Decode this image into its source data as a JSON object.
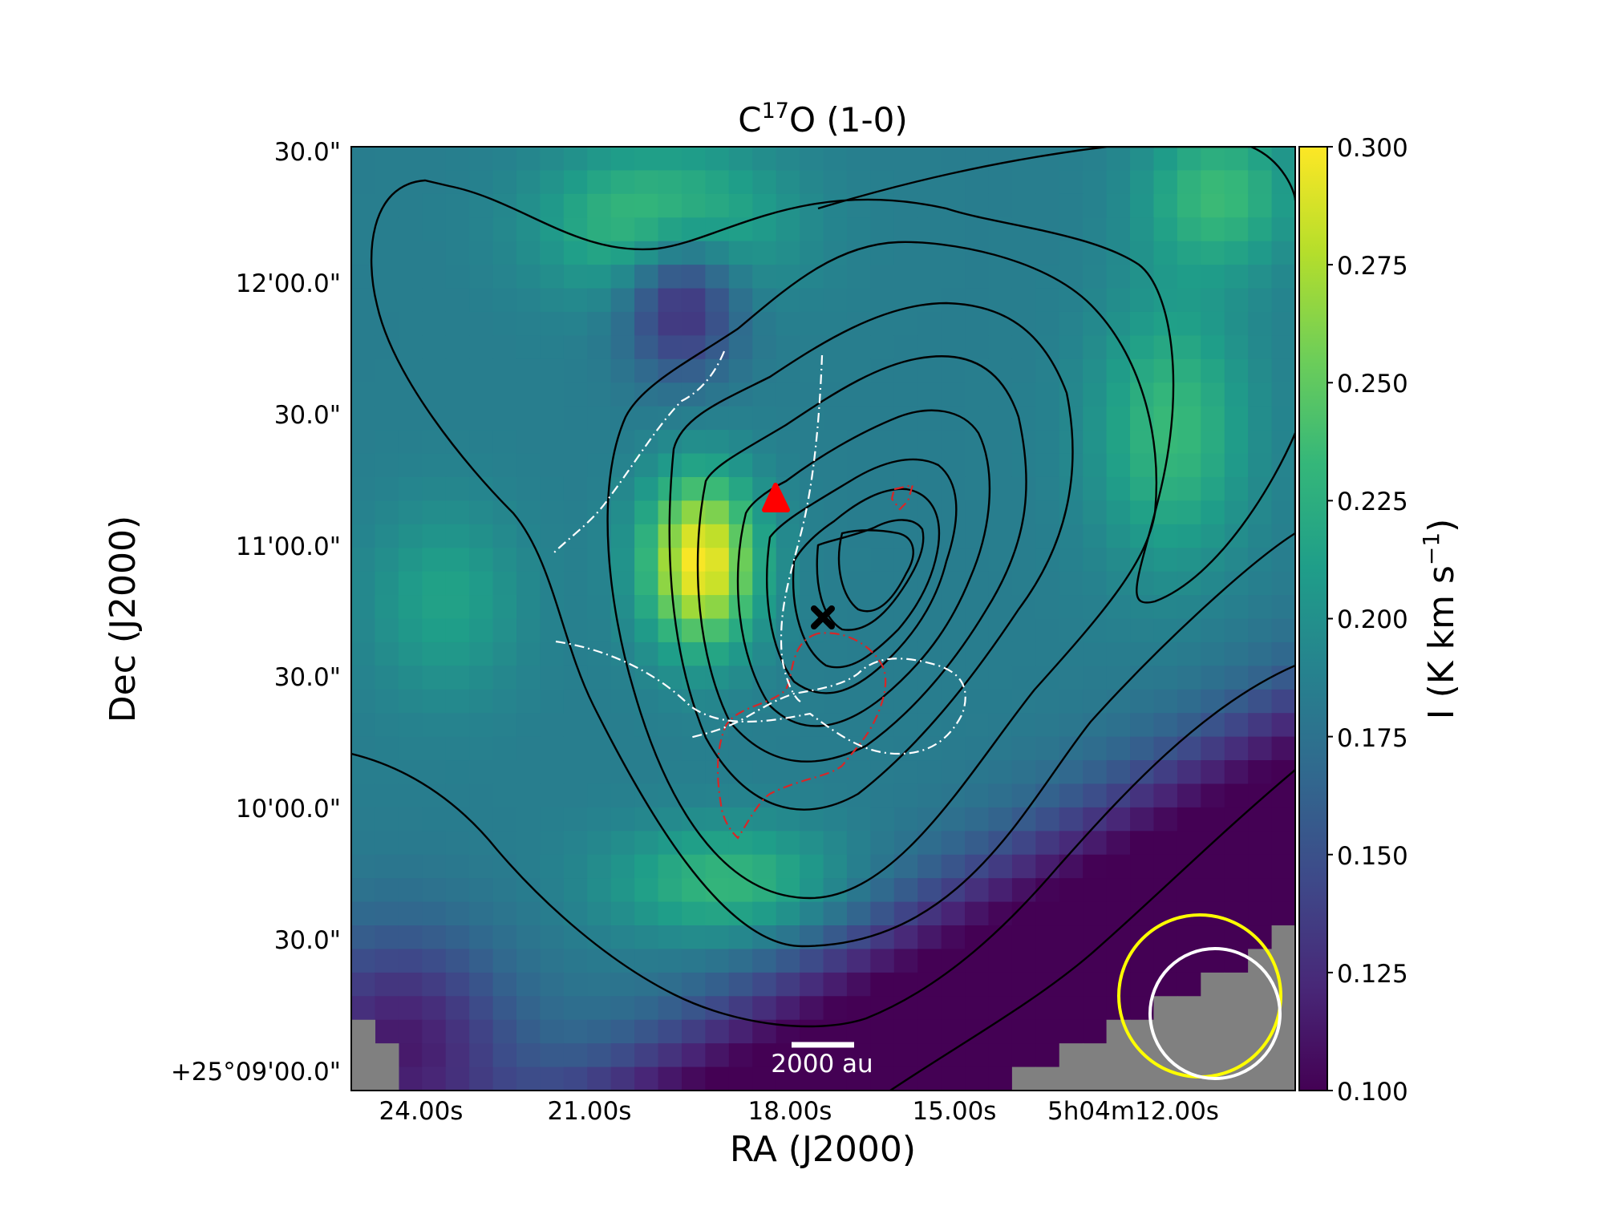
{
  "chart_data": {
    "type": "heatmap",
    "title_main": "C",
    "title_sup": "17",
    "title_rest": "O (1-0)",
    "xlabel": "RA (J2000)",
    "ylabel": "Dec (J2000)",
    "x_ticks": [
      "24.00s",
      "21.00s",
      "18.00s",
      "15.00s",
      "5h04m12.00s"
    ],
    "y_ticks": [
      "30.0\"",
      "12'00.0\"",
      "30.0\"",
      "11'00.0\"",
      "30.0\"",
      "10'00.0\"",
      "30.0\"",
      "+25°09'00.0\""
    ],
    "colorbar": {
      "label_main": "I (K km s",
      "label_sup": "−1",
      "label_end": ")",
      "range": [
        0.1,
        0.3
      ],
      "ticks": [
        "0.300",
        "0.275",
        "0.250",
        "0.225",
        "0.200",
        "0.175",
        "0.150",
        "0.125",
        "0.100"
      ],
      "colormap": "viridis",
      "colors": [
        "#440154",
        "#482878",
        "#3e4989",
        "#31688e",
        "#26828e",
        "#1f9e89",
        "#35b779",
        "#6ece58",
        "#b5de2b",
        "#fde725"
      ]
    },
    "scalebar_label": "2000 au",
    "colors": {
      "masked": "#808080",
      "black_contours": "#000000",
      "red_contours": "#d62728",
      "white_contours": "#ffffff",
      "triangle_marker": "#ff0000",
      "cross_marker": "#000000",
      "beam_large": "#ffff00",
      "beam_small": "#ffffff"
    },
    "markers": [
      {
        "shape": "triangle",
        "color": "#ff0000"
      },
      {
        "shape": "x",
        "color": "#000000"
      }
    ]
  }
}
